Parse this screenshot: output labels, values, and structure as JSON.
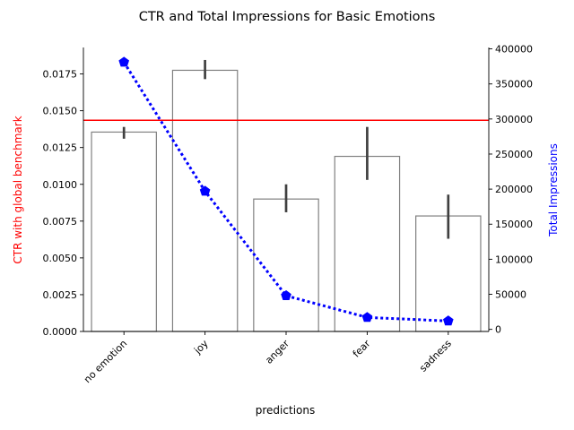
{
  "chart_data": {
    "type": "bar",
    "title": "CTR and Total Impressions for Basic Emotions",
    "xlabel": "predictions",
    "categories": [
      "no emotion",
      "joy",
      "anger",
      "fear",
      "sadness"
    ],
    "left_axis": {
      "label": "CTR with global benchmark",
      "label_color": "#ff0000",
      "ylim": [
        0,
        0.0193
      ],
      "ticks": [
        "0.0000",
        "0.0025",
        "0.0050",
        "0.0075",
        "0.0100",
        "0.0125",
        "0.0150",
        "0.0175"
      ]
    },
    "right_axis": {
      "label": "Total Impressions",
      "label_color": "#0000ff",
      "ylim": [
        -3000,
        402000
      ],
      "ticks": [
        "0",
        "50000",
        "100000",
        "150000",
        "200000",
        "250000",
        "300000",
        "350000",
        "400000"
      ]
    },
    "bars": {
      "values": [
        0.01355,
        0.01775,
        0.009,
        0.0119,
        0.00785
      ],
      "error_low": [
        0.0131,
        0.01715,
        0.0081,
        0.0103,
        0.0063
      ],
      "error_high": [
        0.0139,
        0.01845,
        0.01,
        0.0139,
        0.0093
      ],
      "edge_color": "#808080",
      "error_color": "#404040"
    },
    "benchmark": {
      "value": 0.01435,
      "color": "#ff0000"
    },
    "impressions": {
      "values": [
        381000,
        197000,
        48000,
        17000,
        12000
      ],
      "color": "#0000ff",
      "style": "dotted",
      "marker": "pentagon"
    }
  }
}
